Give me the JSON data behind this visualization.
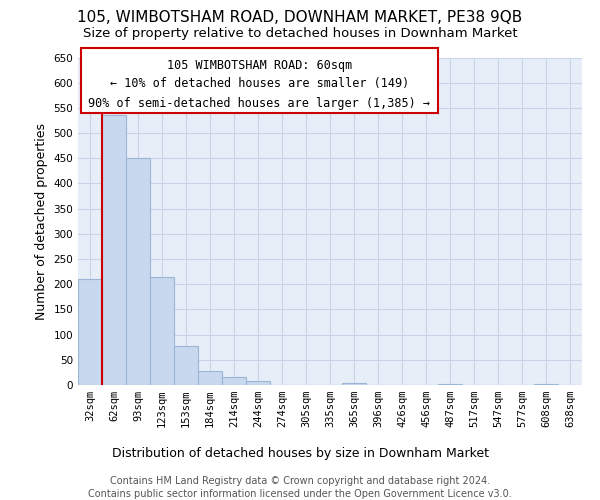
{
  "title": "105, WIMBOTSHAM ROAD, DOWNHAM MARKET, PE38 9QB",
  "subtitle": "Size of property relative to detached houses in Downham Market",
  "xlabel": "Distribution of detached houses by size in Downham Market",
  "ylabel": "Number of detached properties",
  "bar_color": "#c8d8ee",
  "bar_edge_color": "#9ab5d5",
  "highlight_line_color": "#cc0000",
  "annotation_box_color": "#cc0000",
  "background_color": "#ffffff",
  "plot_bg_color": "#e8eef8",
  "grid_color": "#c8d4e8",
  "categories": [
    "32sqm",
    "62sqm",
    "93sqm",
    "123sqm",
    "153sqm",
    "184sqm",
    "214sqm",
    "244sqm",
    "274sqm",
    "305sqm",
    "335sqm",
    "365sqm",
    "396sqm",
    "426sqm",
    "456sqm",
    "487sqm",
    "517sqm",
    "547sqm",
    "577sqm",
    "608sqm",
    "638sqm"
  ],
  "values": [
    210,
    535,
    450,
    215,
    78,
    28,
    15,
    8,
    0,
    0,
    0,
    3,
    0,
    0,
    0,
    1,
    0,
    0,
    0,
    1,
    0
  ],
  "ylim": [
    0,
    650
  ],
  "yticks": [
    0,
    50,
    100,
    150,
    200,
    250,
    300,
    350,
    400,
    450,
    500,
    550,
    600,
    650
  ],
  "annotation_title": "105 WIMBOTSHAM ROAD: 60sqm",
  "annotation_line1": "← 10% of detached houses are smaller (149)",
  "annotation_line2": "90% of semi-detached houses are larger (1,385) →",
  "footer_line1": "Contains HM Land Registry data © Crown copyright and database right 2024.",
  "footer_line2": "Contains public sector information licensed under the Open Government Licence v3.0.",
  "title_fontsize": 11,
  "subtitle_fontsize": 9.5,
  "axis_label_fontsize": 9,
  "tick_fontsize": 7.5,
  "annotation_fontsize": 8.5,
  "footer_fontsize": 7
}
